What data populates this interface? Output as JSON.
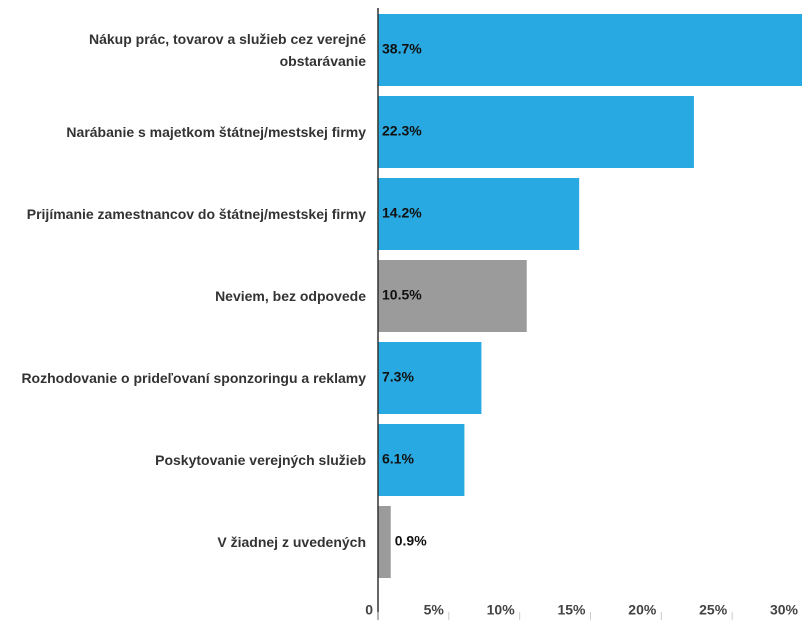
{
  "chart_data": {
    "type": "bar",
    "orientation": "horizontal",
    "categories": [
      "Nákup prác, tovarov a služieb cez verejné obstarávanie",
      "Narábanie s majetkom štátnej/mestskej firmy",
      "Prijímanie zamestnancov do štátnej/mestskej firmy",
      "Neviem, bez odpovede",
      "Rozhodovanie o prideľovaní sponzoringu a reklamy",
      "Poskytovanie verejných služieb",
      "V žiadnej z uvedených"
    ],
    "values": [
      38.7,
      22.3,
      14.2,
      10.5,
      7.3,
      6.1,
      0.9
    ],
    "value_labels": [
      "38.7%",
      "22.3%",
      "14.2%",
      "10.5%",
      "7.3%",
      "6.1%",
      "0.9%"
    ],
    "colors": [
      "#29a9e1",
      "#29a9e1",
      "#29a9e1",
      "#9b9b9b",
      "#29a9e1",
      "#29a9e1",
      "#9b9b9b"
    ],
    "xlim": [
      0,
      30
    ],
    "xticks": [
      0,
      {
        "value": 5,
        "label": "5%"
      },
      {
        "value": 10,
        "label": "10%"
      },
      {
        "value": 15,
        "label": "15%"
      },
      {
        "value": 20,
        "label": "20%"
      },
      {
        "value": 25,
        "label": "25%"
      },
      {
        "value": 30,
        "label": "30%"
      }
    ],
    "grid": false
  }
}
